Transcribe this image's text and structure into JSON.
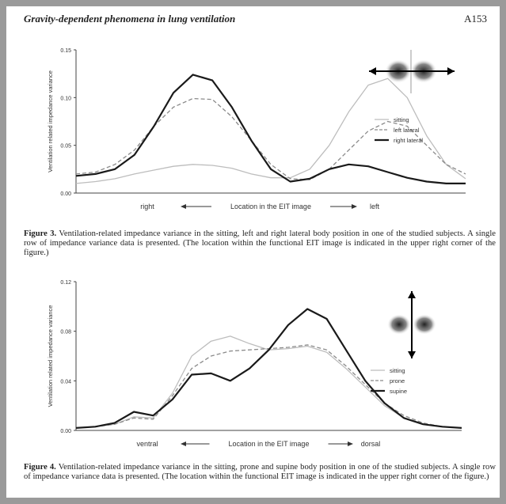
{
  "header": {
    "title": "Gravity-dependent phenomena in lung ventilation",
    "page": "A153"
  },
  "captions": [
    {
      "label": "Figure 3.",
      "text": "Ventilation-related impedance variance in the sitting, left and right lateral body position in one of the studied subjects. A single row of impedance variance data is presented. (The location within the functional EIT image is indicated in the upper right corner of the figure.)"
    },
    {
      "label": "Figure 4.",
      "text": "Ventilation-related impedance variance in the sitting, prone and supine body position in one of the studied subjects. A single row of impedance variance data is presented. (The location within the functional EIT image is indicated in the upper right corner of the figure.)"
    }
  ],
  "chart_data": [
    {
      "type": "line",
      "y_label": "Ventilation related impedance variance",
      "x_labels": [
        "right",
        "Location in the EIT image",
        "left"
      ],
      "ylim": [
        0,
        0.15
      ],
      "yticks": [
        {
          "value": 0,
          "label": "0.00"
        },
        0.05,
        {
          "value": 0.1,
          "label": "0.10"
        },
        0.15
      ],
      "legend": "right",
      "series": [
        {
          "name": "sitting",
          "color": "#bdbdbd",
          "style": "solid",
          "line_width": 1.3,
          "values": [
            0.01,
            0.012,
            0.015,
            0.02,
            0.024,
            0.028,
            0.03,
            0.029,
            0.026,
            0.02,
            0.016,
            0.016,
            0.025,
            0.05,
            0.085,
            0.113,
            0.12,
            0.1,
            0.06,
            0.03,
            0.015
          ]
        },
        {
          "name": "left lateral",
          "color": "#8a8a8a",
          "style": "dashed",
          "line_width": 1.3,
          "values": [
            0.02,
            0.022,
            0.03,
            0.045,
            0.07,
            0.09,
            0.099,
            0.098,
            0.08,
            0.055,
            0.03,
            0.015,
            0.014,
            0.025,
            0.045,
            0.065,
            0.075,
            0.07,
            0.05,
            0.03,
            0.02
          ]
        },
        {
          "name": "right lateral",
          "color": "#1a1a1a",
          "style": "solid",
          "line_width": 2.2,
          "values": [
            0.018,
            0.02,
            0.025,
            0.04,
            0.07,
            0.105,
            0.124,
            0.118,
            0.09,
            0.055,
            0.025,
            0.012,
            0.015,
            0.025,
            0.03,
            0.028,
            0.022,
            0.016,
            0.012,
            0.01,
            0.01
          ]
        }
      ]
    },
    {
      "type": "line",
      "y_label": "Ventilation related impedance variance",
      "x_labels": [
        "ventral",
        "Location in the EIT image",
        "dorsal"
      ],
      "ylim": [
        0,
        0.12
      ],
      "yticks": [
        {
          "value": 0,
          "label": "0.00"
        },
        0.04,
        0.08,
        0.12
      ],
      "legend": "right",
      "series": [
        {
          "name": "sitting",
          "color": "#bdbdbd",
          "style": "solid",
          "line_width": 1.3,
          "values": [
            0.002,
            0.003,
            0.005,
            0.011,
            0.01,
            0.03,
            0.06,
            0.072,
            0.076,
            0.07,
            0.065,
            0.066,
            0.068,
            0.063,
            0.05,
            0.035,
            0.02,
            0.01,
            0.005,
            0.003,
            0.002
          ]
        },
        {
          "name": "prone",
          "color": "#8a8a8a",
          "style": "dashed",
          "line_width": 1.3,
          "values": [
            0.002,
            0.003,
            0.005,
            0.01,
            0.009,
            0.028,
            0.05,
            0.06,
            0.064,
            0.065,
            0.066,
            0.067,
            0.069,
            0.065,
            0.052,
            0.037,
            0.022,
            0.012,
            0.006,
            0.003,
            0.002
          ]
        },
        {
          "name": "supine",
          "color": "#1a1a1a",
          "style": "solid",
          "line_width": 2.2,
          "values": [
            0.002,
            0.003,
            0.006,
            0.015,
            0.012,
            0.025,
            0.045,
            0.046,
            0.04,
            0.05,
            0.065,
            0.085,
            0.098,
            0.09,
            0.065,
            0.04,
            0.022,
            0.01,
            0.005,
            0.003,
            0.002
          ]
        }
      ]
    }
  ]
}
